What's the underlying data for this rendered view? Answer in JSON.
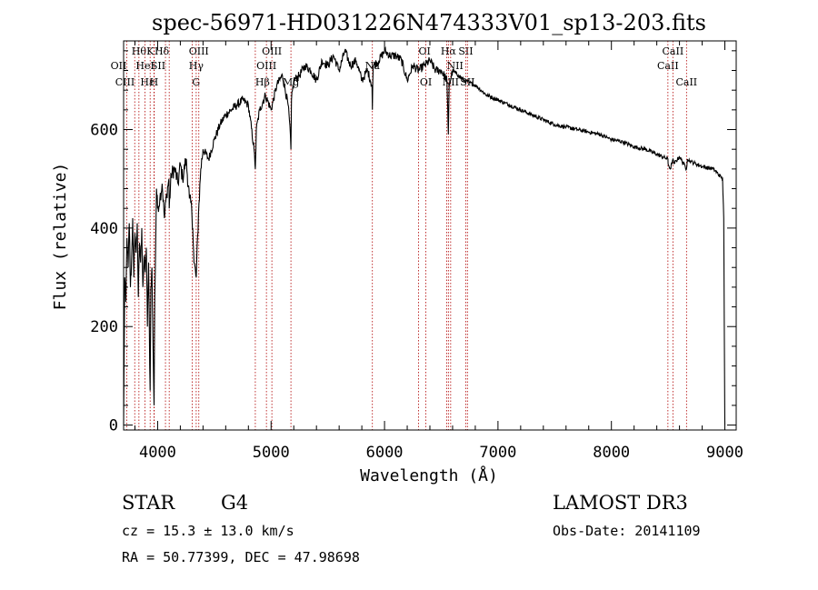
{
  "chart_data": {
    "type": "line",
    "title": "spec-56971-HD031226N474333V01_sp13-203.fits",
    "xlabel": "Wavelength (Å)",
    "ylabel": "Flux (relative)",
    "xlim": [
      3700,
      9100
    ],
    "ylim": [
      -10,
      780
    ],
    "xticks": [
      4000,
      5000,
      6000,
      7000,
      8000,
      9000
    ],
    "yticks": [
      0,
      200,
      400,
      600
    ],
    "x_minor_step": 200,
    "y_minor_step": 40,
    "series": [
      {
        "name": "flux",
        "x": [
          3700,
          3710,
          3720,
          3730,
          3740,
          3750,
          3760,
          3770,
          3780,
          3790,
          3800,
          3810,
          3820,
          3830,
          3840,
          3850,
          3860,
          3870,
          3880,
          3890,
          3900,
          3910,
          3920,
          3930,
          3934,
          3940,
          3950,
          3960,
          3968,
          3975,
          3990,
          4000,
          4020,
          4040,
          4060,
          4080,
          4100,
          4102,
          4120,
          4150,
          4180,
          4200,
          4220,
          4250,
          4280,
          4300,
          4310,
          4320,
          4340,
          4360,
          4380,
          4400,
          4450,
          4500,
          4550,
          4600,
          4650,
          4700,
          4750,
          4800,
          4850,
          4861,
          4870,
          4900,
          4950,
          5000,
          5050,
          5100,
          5150,
          5170,
          5175,
          5180,
          5200,
          5250,
          5300,
          5350,
          5400,
          5450,
          5500,
          5550,
          5600,
          5650,
          5700,
          5750,
          5800,
          5850,
          5890,
          5893,
          5896,
          5900,
          5950,
          6000,
          6050,
          6100,
          6150,
          6200,
          6250,
          6300,
          6350,
          6400,
          6450,
          6500,
          6550,
          6560,
          6563,
          6566,
          6570,
          6600,
          6650,
          6700,
          6750,
          6800,
          6850,
          6900,
          6950,
          7000,
          7100,
          7200,
          7300,
          7400,
          7500,
          7600,
          7700,
          7800,
          7900,
          8000,
          8100,
          8200,
          8300,
          8400,
          8498,
          8500,
          8520,
          8542,
          8550,
          8600,
          8662,
          8670,
          8700,
          8800,
          8900,
          8980,
          8990,
          8995,
          9000
        ],
        "y": [
          0,
          300,
          250,
          380,
          320,
          410,
          280,
          330,
          420,
          300,
          390,
          350,
          410,
          260,
          370,
          330,
          400,
          280,
          340,
          310,
          360,
          200,
          330,
          120,
          70,
          280,
          320,
          150,
          40,
          260,
          480,
          440,
          460,
          490,
          420,
          470,
          500,
          440,
          510,
          520,
          490,
          530,
          500,
          540,
          460,
          440,
          400,
          330,
          300,
          430,
          520,
          560,
          540,
          580,
          610,
          630,
          640,
          650,
          660,
          650,
          560,
          520,
          600,
          640,
          670,
          640,
          690,
          710,
          650,
          590,
          560,
          660,
          700,
          710,
          730,
          720,
          700,
          740,
          730,
          750,
          720,
          760,
          730,
          740,
          700,
          720,
          690,
          640,
          690,
          730,
          740,
          760,
          750,
          750,
          740,
          700,
          730,
          720,
          730,
          740,
          720,
          720,
          700,
          610,
          590,
          640,
          690,
          720,
          710,
          700,
          695,
          690,
          680,
          670,
          665,
          660,
          650,
          640,
          630,
          620,
          610,
          605,
          600,
          595,
          590,
          580,
          575,
          565,
          560,
          550,
          540,
          530,
          520,
          540,
          530,
          545,
          520,
          540,
          535,
          525,
          520,
          500,
          420,
          200,
          0
        ]
      }
    ],
    "lines": [
      {
        "x": 3727,
        "label": "OII",
        "row": 1,
        "anchor": "end"
      },
      {
        "x": 3798,
        "label": "CIII",
        "row": 2,
        "anchor": "end"
      },
      {
        "x": 3835,
        "label": "Hθ",
        "row": 0,
        "anchor": "middle"
      },
      {
        "x": 3889,
        "label": "HeI",
        "row": 1,
        "anchor": "middle"
      },
      {
        "x": 3934,
        "label": "K",
        "row": 0,
        "anchor": "middle"
      },
      {
        "x": 3968,
        "label": "H",
        "row": 2,
        "anchor": "middle"
      },
      {
        "x": 3970,
        "label": "Hε",
        "row": 2,
        "anchor": "end"
      },
      {
        "x": 4069,
        "label": "SII",
        "row": 1,
        "anchor": "end"
      },
      {
        "x": 4102,
        "label": "Hδ",
        "row": 0,
        "anchor": "end"
      },
      {
        "x": 4304,
        "label": "G",
        "row": 2,
        "anchor": "start"
      },
      {
        "x": 4340,
        "label": "Hγ",
        "row": 1,
        "anchor": "middle"
      },
      {
        "x": 4363,
        "label": "OIII",
        "row": 0,
        "anchor": "middle"
      },
      {
        "x": 4861,
        "label": "Hβ",
        "row": 2,
        "anchor": "start"
      },
      {
        "x": 4959,
        "label": "OIII",
        "row": 1,
        "anchor": "middle"
      },
      {
        "x": 5007,
        "label": "OIII",
        "row": 0,
        "anchor": "middle"
      },
      {
        "x": 5175,
        "label": "Mg",
        "row": 2,
        "anchor": "middle"
      },
      {
        "x": 5893,
        "label": "Na",
        "row": 1,
        "anchor": "middle"
      },
      {
        "x": 6300,
        "label": "OI",
        "row": 0,
        "anchor": "start"
      },
      {
        "x": 6364,
        "label": "OI",
        "row": 2,
        "anchor": "middle"
      },
      {
        "x": 6548,
        "label": "NII",
        "row": 1,
        "anchor": "start"
      },
      {
        "x": 6563,
        "label": "Hα",
        "row": 0,
        "anchor": "middle"
      },
      {
        "x": 6583,
        "label": "NII",
        "row": 2,
        "anchor": "middle"
      },
      {
        "x": 6716,
        "label": "SII",
        "row": 0,
        "anchor": "middle"
      },
      {
        "x": 6731,
        "label": "SII",
        "row": 2,
        "anchor": "middle"
      },
      {
        "x": 8498,
        "label": "CaII",
        "row": 1,
        "anchor": "middle"
      },
      {
        "x": 8542,
        "label": "CaII",
        "row": 0,
        "anchor": "middle"
      },
      {
        "x": 8662,
        "label": "CaII",
        "row": 2,
        "anchor": "middle"
      }
    ]
  },
  "info": {
    "object_class": "STAR",
    "subclass": "G4",
    "survey": "LAMOST DR3",
    "cz": "cz = 15.3 ± 13.0 km/s",
    "obs_date": "Obs-Date: 20141109",
    "coords": "RA =  50.77399, DEC =  47.98698"
  }
}
